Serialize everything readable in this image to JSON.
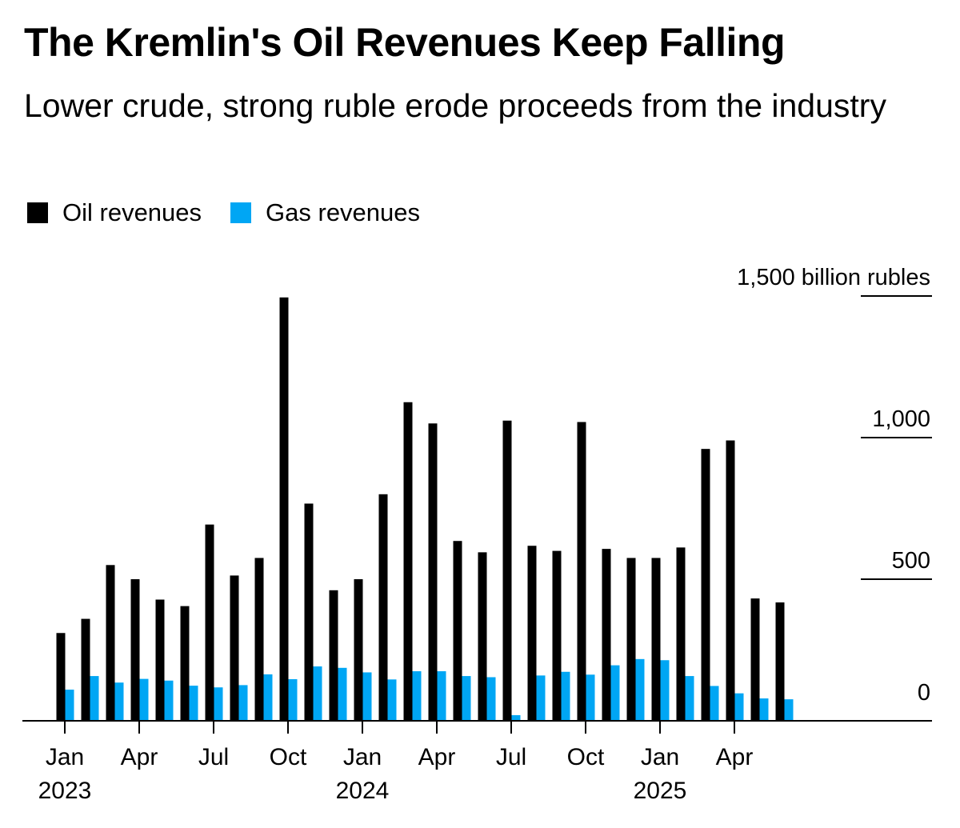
{
  "title": "The Kremlin's Oil Revenues Keep Falling",
  "subtitle": "Lower crude, strong ruble erode proceeds from the industry",
  "legend": {
    "oil_label": "Oil revenues",
    "gas_label": "Gas revenues"
  },
  "colors": {
    "oil": "#000000",
    "gas": "#00a6f4",
    "axis": "#000000"
  },
  "chart_data": {
    "type": "bar",
    "ylabel": "1,500 billion rubles",
    "ylim": [
      0,
      1500
    ],
    "yticks": [
      {
        "value": 1500,
        "label": "1,500 billion rubles"
      },
      {
        "value": 1000,
        "label": "1,000"
      },
      {
        "value": 500,
        "label": "500"
      },
      {
        "value": 0,
        "label": "0"
      }
    ],
    "months": [
      "Jan 2023",
      "Feb 2023",
      "Mar 2023",
      "Apr 2023",
      "May 2023",
      "Jun 2023",
      "Jul 2023",
      "Aug 2023",
      "Sep 2023",
      "Oct 2023",
      "Nov 2023",
      "Dec 2023",
      "Jan 2024",
      "Feb 2024",
      "Mar 2024",
      "Apr 2024",
      "May 2024",
      "Jun 2024",
      "Jul 2024",
      "Aug 2024",
      "Sep 2024",
      "Oct 2024",
      "Nov 2024",
      "Dec 2024",
      "Jan 2025",
      "Feb 2025",
      "Mar 2025",
      "Apr 2025",
      "May 2025",
      "Jun 2025"
    ],
    "xticks": [
      {
        "index": 0,
        "month": "Jan",
        "year": "2023"
      },
      {
        "index": 3,
        "month": "Apr",
        "year": ""
      },
      {
        "index": 6,
        "month": "Jul",
        "year": ""
      },
      {
        "index": 9,
        "month": "Oct",
        "year": ""
      },
      {
        "index": 12,
        "month": "Jan",
        "year": "2024"
      },
      {
        "index": 15,
        "month": "Apr",
        "year": ""
      },
      {
        "index": 18,
        "month": "Jul",
        "year": ""
      },
      {
        "index": 21,
        "month": "Oct",
        "year": ""
      },
      {
        "index": 24,
        "month": "Jan",
        "year": "2025"
      },
      {
        "index": 27,
        "month": "Apr",
        "year": ""
      }
    ],
    "series": [
      {
        "name": "Oil revenues",
        "values": [
          310,
          360,
          550,
          500,
          428,
          405,
          693,
          513,
          575,
          1495,
          767,
          461,
          500,
          800,
          1125,
          1050,
          635,
          595,
          1060,
          618,
          600,
          1055,
          607,
          575,
          575,
          612,
          960,
          990,
          432,
          418
        ]
      },
      {
        "name": "Gas revenues",
        "values": [
          110,
          158,
          135,
          148,
          142,
          124,
          118,
          126,
          164,
          147,
          192,
          187,
          171,
          146,
          175,
          175,
          158,
          154,
          20,
          160,
          173,
          163,
          196,
          218,
          214,
          158,
          123,
          97,
          79,
          76
        ]
      }
    ]
  }
}
